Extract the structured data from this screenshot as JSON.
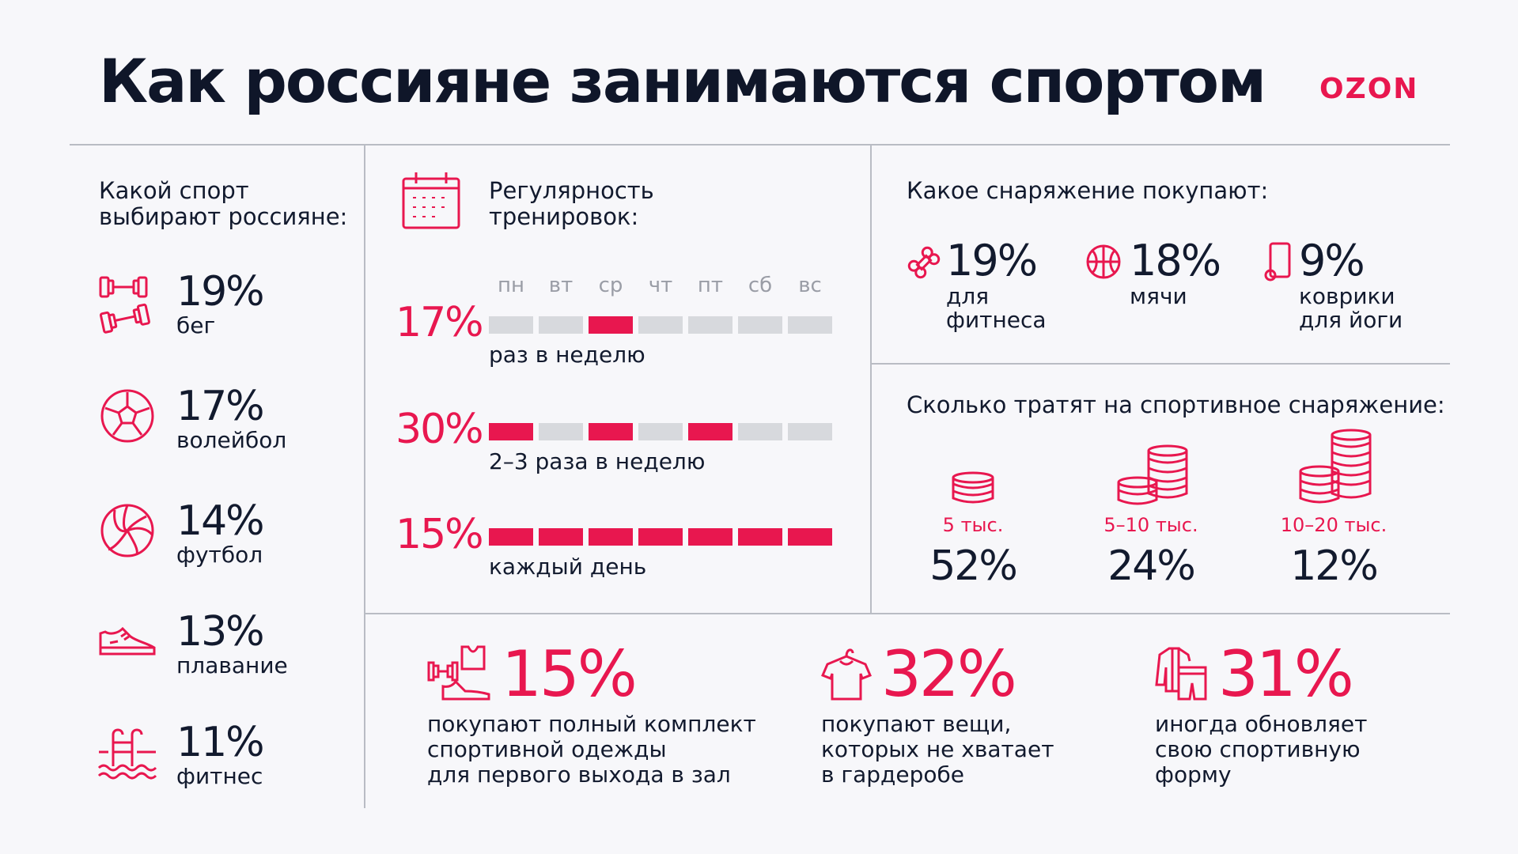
{
  "title": "Как россияне занимаются спортом",
  "brand": {
    "name": "OZON",
    "accent": "#e8174f"
  },
  "sports": {
    "heading": [
      "Какой спорт",
      "выбирают россияне:"
    ],
    "items": [
      {
        "pct": "19%",
        "label": "бег",
        "icon": "dumbbell-icon"
      },
      {
        "pct": "17%",
        "label": "волейбол",
        "icon": "soccer-ball-icon"
      },
      {
        "pct": "14%",
        "label": "футбол",
        "icon": "volleyball-icon"
      },
      {
        "pct": "13%",
        "label": "плавание",
        "icon": "sneaker-icon"
      },
      {
        "pct": "11%",
        "label": "фитнес",
        "icon": "pool-ladder-icon"
      }
    ]
  },
  "regularity": {
    "heading": [
      "Регулярность",
      "тренировок:"
    ],
    "icon": "calendar-icon",
    "days": [
      "пн",
      "вт",
      "ср",
      "чт",
      "пт",
      "сб",
      "вс"
    ],
    "rows": [
      {
        "pct": "17%",
        "label": "раз в неделю",
        "active": [
          0,
          0,
          1,
          0,
          0,
          0,
          0
        ]
      },
      {
        "pct": "30%",
        "label": "2–3 раза в неделю",
        "active": [
          1,
          0,
          1,
          0,
          1,
          0,
          0
        ]
      },
      {
        "pct": "15%",
        "label": "каждый день",
        "active": [
          1,
          1,
          1,
          1,
          1,
          1,
          1
        ]
      }
    ]
  },
  "equipment": {
    "heading": "Какое снаряжение покупают:",
    "items": [
      {
        "pct": "19%",
        "label": [
          "для",
          "фитнеса"
        ],
        "icon": "bone-dumbbell-icon"
      },
      {
        "pct": "18%",
        "label": [
          "мячи"
        ],
        "icon": "basketball-icon"
      },
      {
        "pct": "9%",
        "label": [
          "коврики",
          "для йоги"
        ],
        "icon": "yoga-mat-icon"
      }
    ]
  },
  "spending": {
    "heading": "Сколько тратят на спортивное снаряжение:",
    "items": [
      {
        "amount": "5 тыс.",
        "pct": "52%",
        "icon": "coin-stack-small-icon"
      },
      {
        "amount": "5–10 тыс.",
        "pct": "24%",
        "icon": "coin-stack-medium-icon"
      },
      {
        "amount": "10–20 тыс.",
        "pct": "12%",
        "icon": "coin-stack-large-icon"
      }
    ]
  },
  "bottom": [
    {
      "pct": "15%",
      "label": [
        "покупают полный комплект",
        "спортивной одежды",
        "для первого выхода в зал"
      ],
      "icon": "sport-outfit-icon"
    },
    {
      "pct": "32%",
      "label": [
        "покупают вещи,",
        "которых не хватает",
        "в гардеробе"
      ],
      "icon": "tshirt-hanger-icon"
    },
    {
      "pct": "31%",
      "label": [
        "иногда обновляет",
        "свою спортивную",
        "форму"
      ],
      "icon": "jacket-shorts-icon"
    }
  ]
}
